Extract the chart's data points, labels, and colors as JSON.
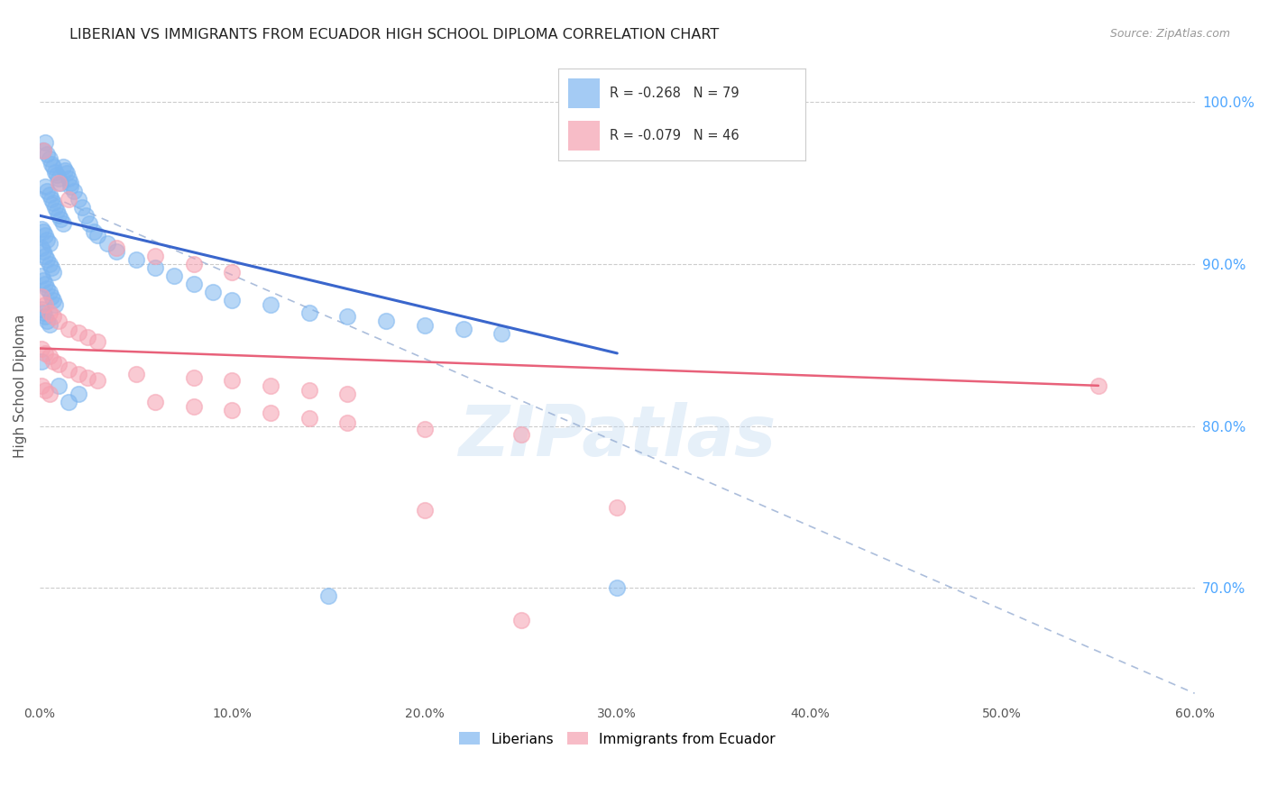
{
  "title": "LIBERIAN VS IMMIGRANTS FROM ECUADOR HIGH SCHOOL DIPLOMA CORRELATION CHART",
  "source": "Source: ZipAtlas.com",
  "ylabel": "High School Diploma",
  "xlim": [
    0.0,
    0.6
  ],
  "ylim": [
    0.63,
    1.02
  ],
  "right_ytick_vals": [
    1.0,
    0.9,
    0.8,
    0.7
  ],
  "right_ytick_labels": [
    "100.0%",
    "90.0%",
    "80.0%",
    "70.0%"
  ],
  "xtick_values": [
    0.0,
    0.1,
    0.2,
    0.3,
    0.4,
    0.5,
    0.6
  ],
  "xtick_labels": [
    "0.0%",
    "10.0%",
    "20.0%",
    "30.0%",
    "40.0%",
    "50.0%",
    "60.0%"
  ],
  "grid_color": "#cccccc",
  "background_color": "#ffffff",
  "liberian_color": "#7eb6f0",
  "ecuador_color": "#f5a0b0",
  "legend_R_liberian": "R = -0.268",
  "legend_N_liberian": "N = 79",
  "legend_R_ecuador": "R = -0.079",
  "legend_N_ecuador": "N = 46",
  "legend_label_liberian": "Liberians",
  "legend_label_ecuador": "Immigrants from Ecuador",
  "liberian_points": [
    [
      0.002,
      0.97
    ],
    [
      0.003,
      0.975
    ],
    [
      0.004,
      0.968
    ],
    [
      0.005,
      0.965
    ],
    [
      0.006,
      0.962
    ],
    [
      0.007,
      0.96
    ],
    [
      0.008,
      0.957
    ],
    [
      0.009,
      0.955
    ],
    [
      0.01,
      0.953
    ],
    [
      0.011,
      0.95
    ],
    [
      0.012,
      0.96
    ],
    [
      0.013,
      0.958
    ],
    [
      0.014,
      0.956
    ],
    [
      0.015,
      0.953
    ],
    [
      0.016,
      0.95
    ],
    [
      0.003,
      0.948
    ],
    [
      0.004,
      0.945
    ],
    [
      0.005,
      0.943
    ],
    [
      0.006,
      0.94
    ],
    [
      0.007,
      0.938
    ],
    [
      0.008,
      0.935
    ],
    [
      0.009,
      0.933
    ],
    [
      0.01,
      0.93
    ],
    [
      0.011,
      0.928
    ],
    [
      0.012,
      0.925
    ],
    [
      0.001,
      0.922
    ],
    [
      0.002,
      0.92
    ],
    [
      0.003,
      0.918
    ],
    [
      0.004,
      0.915
    ],
    [
      0.005,
      0.913
    ],
    [
      0.001,
      0.91
    ],
    [
      0.002,
      0.908
    ],
    [
      0.003,
      0.905
    ],
    [
      0.004,
      0.903
    ],
    [
      0.005,
      0.9
    ],
    [
      0.006,
      0.898
    ],
    [
      0.007,
      0.895
    ],
    [
      0.001,
      0.893
    ],
    [
      0.002,
      0.89
    ],
    [
      0.003,
      0.888
    ],
    [
      0.004,
      0.885
    ],
    [
      0.005,
      0.883
    ],
    [
      0.006,
      0.88
    ],
    [
      0.007,
      0.878
    ],
    [
      0.008,
      0.875
    ],
    [
      0.001,
      0.872
    ],
    [
      0.002,
      0.87
    ],
    [
      0.003,
      0.868
    ],
    [
      0.004,
      0.865
    ],
    [
      0.005,
      0.863
    ],
    [
      0.016,
      0.948
    ],
    [
      0.018,
      0.945
    ],
    [
      0.02,
      0.94
    ],
    [
      0.022,
      0.935
    ],
    [
      0.024,
      0.93
    ],
    [
      0.026,
      0.925
    ],
    [
      0.028,
      0.92
    ],
    [
      0.03,
      0.918
    ],
    [
      0.035,
      0.913
    ],
    [
      0.04,
      0.908
    ],
    [
      0.05,
      0.903
    ],
    [
      0.06,
      0.898
    ],
    [
      0.07,
      0.893
    ],
    [
      0.08,
      0.888
    ],
    [
      0.09,
      0.883
    ],
    [
      0.1,
      0.878
    ],
    [
      0.12,
      0.875
    ],
    [
      0.14,
      0.87
    ],
    [
      0.16,
      0.868
    ],
    [
      0.18,
      0.865
    ],
    [
      0.2,
      0.862
    ],
    [
      0.22,
      0.86
    ],
    [
      0.24,
      0.857
    ],
    [
      0.001,
      0.84
    ],
    [
      0.01,
      0.825
    ],
    [
      0.02,
      0.82
    ],
    [
      0.015,
      0.815
    ],
    [
      0.15,
      0.695
    ],
    [
      0.3,
      0.7
    ]
  ],
  "ecuador_points": [
    [
      0.002,
      0.97
    ],
    [
      0.01,
      0.95
    ],
    [
      0.015,
      0.94
    ],
    [
      0.04,
      0.91
    ],
    [
      0.06,
      0.905
    ],
    [
      0.08,
      0.9
    ],
    [
      0.1,
      0.895
    ],
    [
      0.001,
      0.88
    ],
    [
      0.003,
      0.875
    ],
    [
      0.005,
      0.87
    ],
    [
      0.007,
      0.868
    ],
    [
      0.01,
      0.865
    ],
    [
      0.015,
      0.86
    ],
    [
      0.02,
      0.858
    ],
    [
      0.025,
      0.855
    ],
    [
      0.03,
      0.852
    ],
    [
      0.001,
      0.848
    ],
    [
      0.003,
      0.845
    ],
    [
      0.005,
      0.843
    ],
    [
      0.007,
      0.84
    ],
    [
      0.01,
      0.838
    ],
    [
      0.015,
      0.835
    ],
    [
      0.02,
      0.832
    ],
    [
      0.025,
      0.83
    ],
    [
      0.03,
      0.828
    ],
    [
      0.001,
      0.825
    ],
    [
      0.003,
      0.822
    ],
    [
      0.005,
      0.82
    ],
    [
      0.05,
      0.832
    ],
    [
      0.08,
      0.83
    ],
    [
      0.1,
      0.828
    ],
    [
      0.12,
      0.825
    ],
    [
      0.14,
      0.822
    ],
    [
      0.16,
      0.82
    ],
    [
      0.06,
      0.815
    ],
    [
      0.08,
      0.812
    ],
    [
      0.1,
      0.81
    ],
    [
      0.12,
      0.808
    ],
    [
      0.14,
      0.805
    ],
    [
      0.16,
      0.802
    ],
    [
      0.2,
      0.798
    ],
    [
      0.25,
      0.795
    ],
    [
      0.3,
      0.75
    ],
    [
      0.2,
      0.748
    ],
    [
      0.55,
      0.825
    ],
    [
      0.25,
      0.68
    ]
  ],
  "liberian_trendline": [
    [
      0.0,
      0.93
    ],
    [
      0.3,
      0.845
    ]
  ],
  "ecuador_trendline": [
    [
      0.0,
      0.848
    ],
    [
      0.55,
      0.825
    ]
  ],
  "dashed_line": [
    [
      0.0,
      0.945
    ],
    [
      0.6,
      0.635
    ]
  ],
  "title_color": "#222222",
  "title_fontsize": 11.5,
  "right_axis_color": "#4da6ff",
  "source_color": "#999999"
}
